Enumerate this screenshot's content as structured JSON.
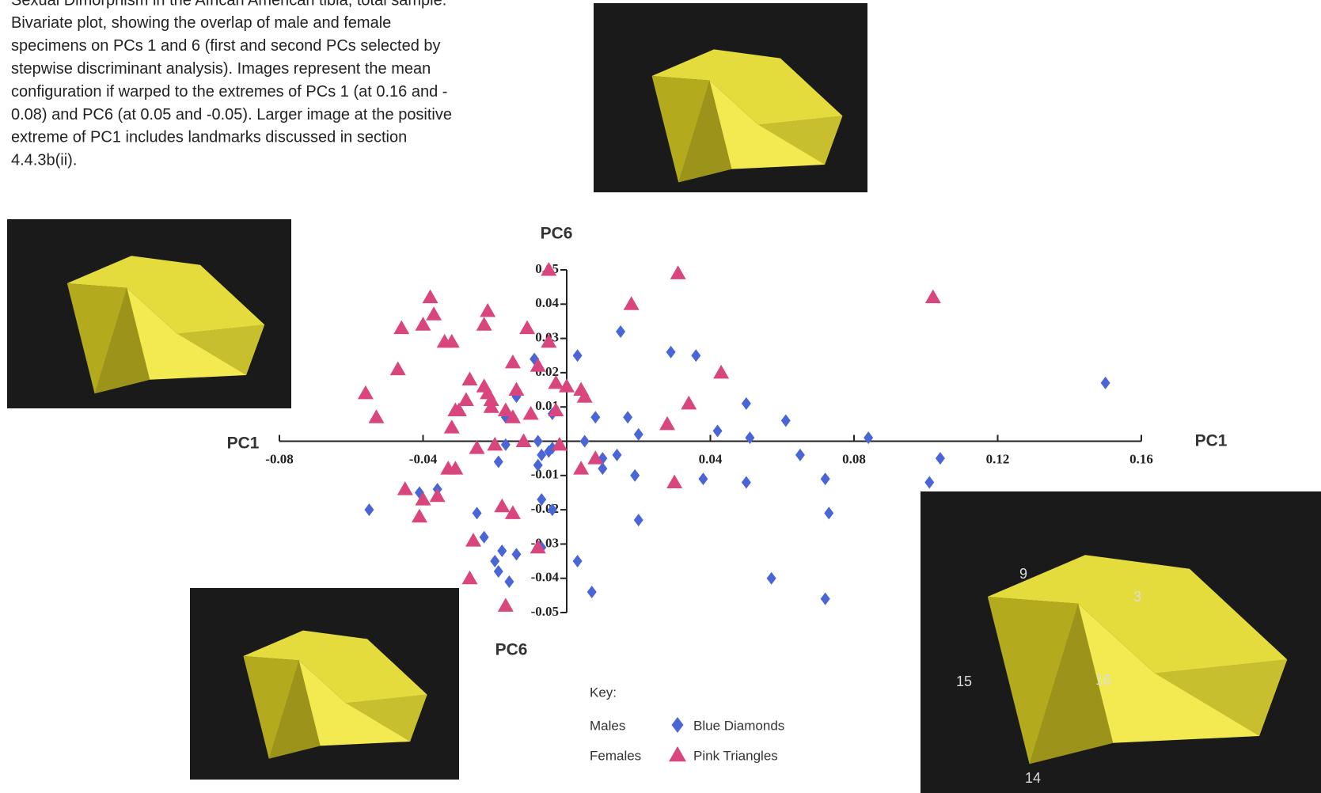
{
  "chart_data": {
    "type": "scatter",
    "caption": [
      "Sexual Dimorphism in the African American tibia, total sample.",
      "Bivariate plot, showing the overlap of male and female",
      "specimens on PCs 1 and 6 (first and second PCs selected by",
      "stepwise discriminant analysis). Images represent the mean",
      "configuration if warped to the extremes of PCs 1 (at 0.16 and -",
      "0.08) and PC6 (at 0.05 and -0.05). Larger image at the positive",
      "extreme of PC1 includes landmarks discussed in section",
      "4.4.3b(ii)."
    ],
    "x_label": "PC1",
    "y_label": "PC6",
    "legend_title": "Key:",
    "landmark_labels": [
      "9",
      "3",
      "15",
      "16",
      "14"
    ],
    "xlim": [
      -0.08,
      0.16
    ],
    "ylim": [
      -0.05,
      0.05
    ],
    "xticks": [
      -0.08,
      -0.04,
      0.04,
      0.08,
      0.12,
      0.16
    ],
    "yticks": [
      -0.05,
      -0.04,
      -0.03,
      -0.02,
      -0.01,
      0.01,
      0.02,
      0.03,
      0.04,
      0.05
    ],
    "series": [
      {
        "name": "Males",
        "marker_label": "Blue Diamonds",
        "marker": "diamond",
        "color": "#4a66d6",
        "x": [
          0.015,
          0.003,
          -0.009,
          0.029,
          0.036,
          0.15,
          0.05,
          0.061,
          0.008,
          0.017,
          0.02,
          0.042,
          0.051,
          0.084,
          -0.004,
          -0.014,
          -0.017,
          0.005,
          -0.008,
          -0.017,
          -0.019,
          -0.008,
          -0.007,
          -0.005,
          -0.004,
          0.01,
          0.014,
          0.01,
          0.019,
          0.065,
          0.104,
          0.101,
          0.038,
          0.05,
          0.072,
          0.073,
          0.02,
          0.003,
          0.007,
          0.057,
          0.072,
          -0.055,
          -0.041,
          -0.036,
          -0.025,
          -0.023,
          -0.02,
          -0.018,
          -0.019,
          -0.016,
          -0.014,
          -0.007,
          -0.007,
          -0.004
        ],
        "y": [
          0.032,
          0.025,
          0.024,
          0.026,
          0.025,
          0.017,
          0.011,
          0.006,
          0.007,
          0.007,
          0.002,
          0.003,
          0.001,
          0.001,
          0.008,
          0.013,
          0.007,
          0,
          0,
          -0.001,
          -0.006,
          -0.007,
          -0.004,
          -0.003,
          -0.002,
          -0.005,
          -0.004,
          -0.008,
          -0.01,
          -0.004,
          -0.005,
          -0.012,
          -0.011,
          -0.012,
          -0.011,
          -0.021,
          -0.023,
          -0.035,
          -0.044,
          -0.04,
          -0.046,
          -0.02,
          -0.015,
          -0.014,
          -0.021,
          -0.028,
          -0.035,
          -0.032,
          -0.038,
          -0.041,
          -0.033,
          -0.031,
          -0.017,
          -0.02
        ]
      },
      {
        "name": "Females",
        "marker_label": "Pink Triangles",
        "marker": "triangle",
        "color": "#d9457d",
        "x": [
          -0.005,
          0.031,
          0.102,
          -0.038,
          -0.022,
          0.018,
          -0.037,
          -0.04,
          -0.023,
          -0.046,
          -0.011,
          -0.005,
          -0.034,
          -0.032,
          -0.047,
          -0.015,
          -0.008,
          -0.027,
          0.043,
          -0.023,
          -0.022,
          -0.021,
          -0.014,
          -0.003,
          0.0,
          0.004,
          0.005,
          -0.056,
          -0.053,
          -0.031,
          -0.028,
          -0.03,
          -0.021,
          -0.017,
          -0.015,
          -0.01,
          -0.003,
          0.034,
          0.028,
          -0.032,
          -0.025,
          -0.02,
          -0.012,
          -0.002,
          -0.033,
          -0.031,
          0.008,
          0.004,
          0.03,
          -0.045,
          -0.04,
          -0.036,
          -0.041,
          -0.018,
          -0.015,
          -0.026,
          -0.027,
          -0.017,
          -0.008
        ],
        "y": [
          0.05,
          0.049,
          0.042,
          0.042,
          0.038,
          0.04,
          0.037,
          0.034,
          0.034,
          0.033,
          0.033,
          0.029,
          0.029,
          0.029,
          0.021,
          0.023,
          0.022,
          0.018,
          0.02,
          0.016,
          0.014,
          0.012,
          0.015,
          0.017,
          0.016,
          0.015,
          0.013,
          0.014,
          0.007,
          0.009,
          0.012,
          0.009,
          0.01,
          0.009,
          0.007,
          0.008,
          0.009,
          0.011,
          0.005,
          0.004,
          -0.002,
          -0.001,
          0.0,
          -0.001,
          -0.008,
          -0.008,
          -0.005,
          -0.008,
          -0.012,
          -0.014,
          -0.017,
          -0.016,
          -0.022,
          -0.019,
          -0.021,
          -0.029,
          -0.04,
          -0.048,
          -0.031
        ]
      }
    ]
  }
}
